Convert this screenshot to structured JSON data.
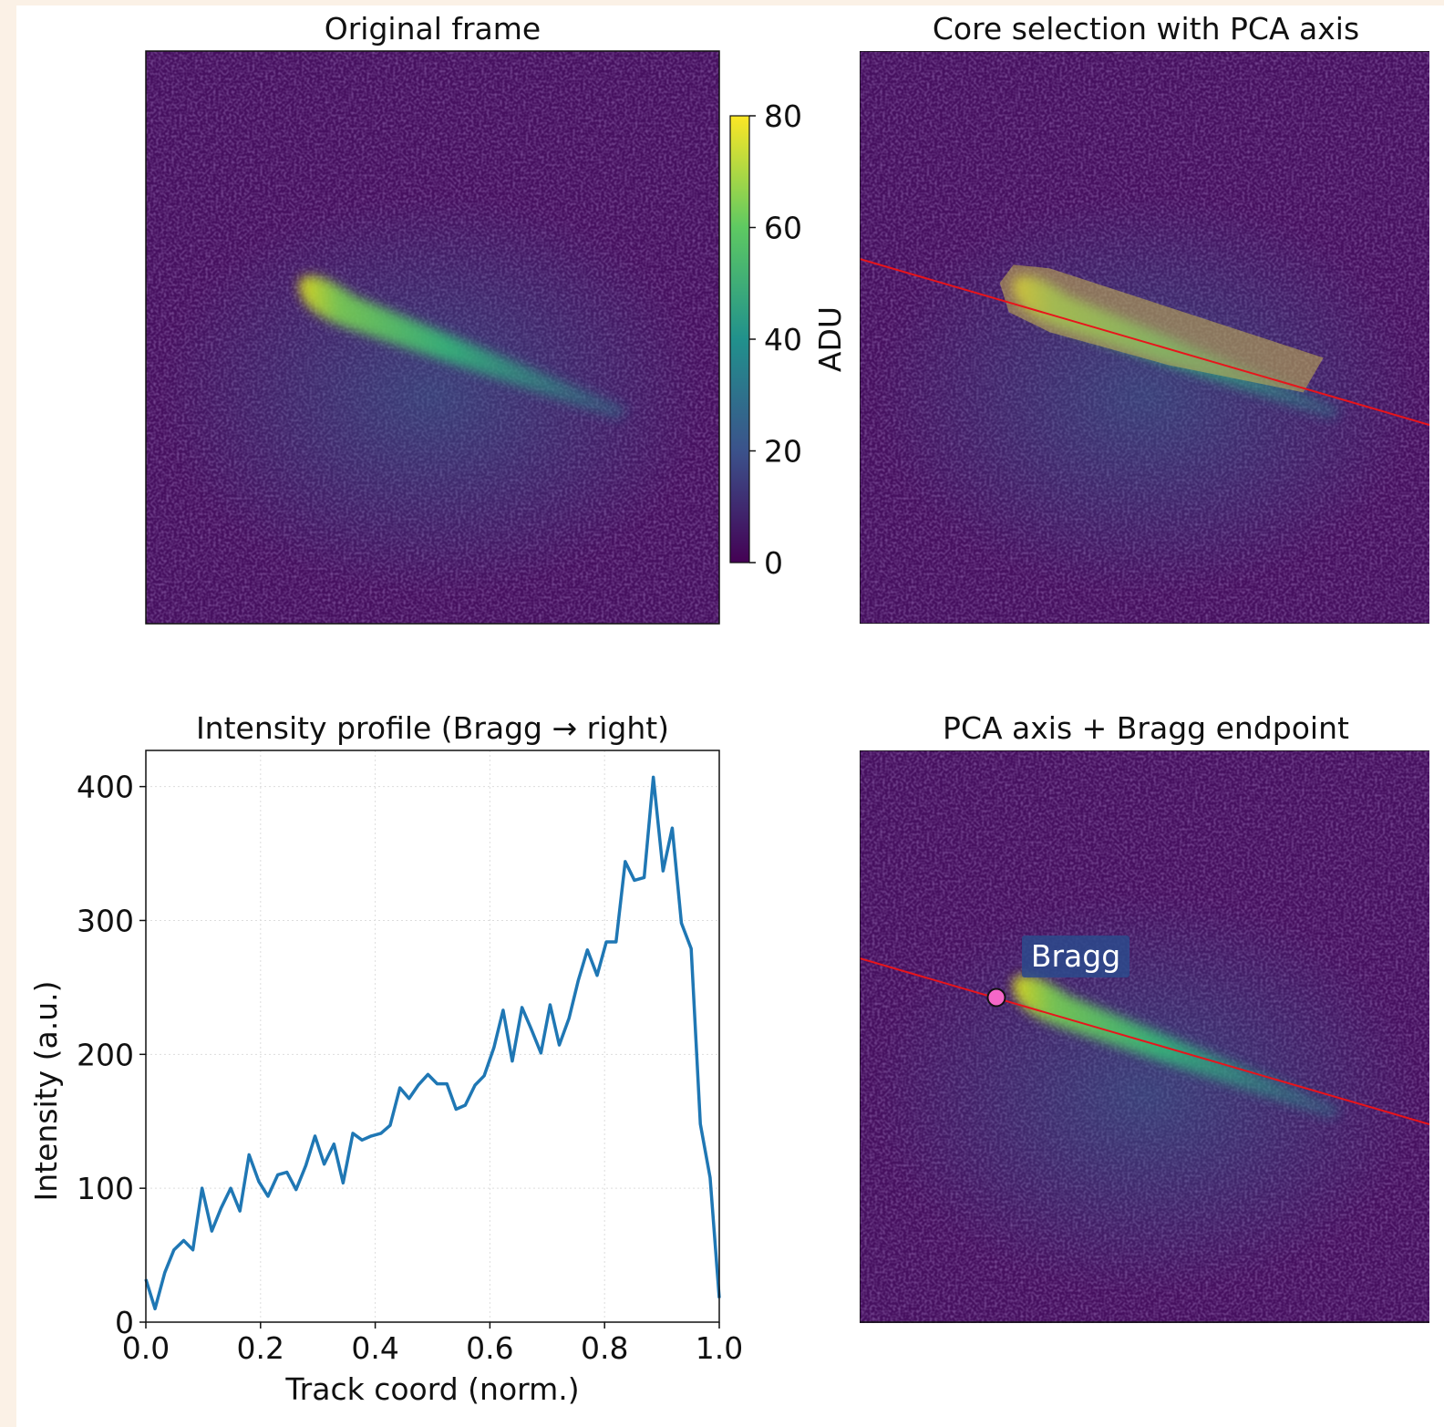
{
  "chart_data": [
    {
      "type": "image",
      "title": "Original frame",
      "colorbar": {
        "label": "ADU",
        "lim": [
          0,
          80
        ],
        "ticks": [
          0,
          20,
          40,
          60,
          80
        ]
      }
    },
    {
      "type": "image",
      "title": "Core selection with PCA axis"
    },
    {
      "type": "line",
      "title": "Intensity profile (Bragg → right)",
      "xlabel": "Track coord (norm.)",
      "ylabel": "Intensity (a.u.)",
      "x": [
        0,
        0.016,
        0.033,
        0.049,
        0.066,
        0.082,
        0.098,
        0.115,
        0.131,
        0.148,
        0.164,
        0.18,
        0.197,
        0.213,
        0.23,
        0.246,
        0.262,
        0.279,
        0.295,
        0.311,
        0.328,
        0.344,
        0.361,
        0.377,
        0.393,
        0.41,
        0.426,
        0.443,
        0.459,
        0.475,
        0.492,
        0.508,
        0.525,
        0.541,
        0.557,
        0.574,
        0.59,
        0.607,
        0.623,
        0.639,
        0.656,
        0.672,
        0.689,
        0.705,
        0.721,
        0.738,
        0.754,
        0.77,
        0.787,
        0.803,
        0.82,
        0.836,
        0.852,
        0.869,
        0.885,
        0.902,
        0.918,
        0.934,
        0.951,
        0.967,
        0.984,
        1
      ],
      "values": [
        32,
        10,
        37,
        54,
        61,
        54,
        100,
        68,
        85,
        100,
        83,
        125,
        105,
        94,
        110,
        112,
        99,
        117,
        139,
        118,
        133,
        104,
        141,
        136,
        139,
        141,
        147,
        175,
        167,
        177,
        185,
        178,
        178,
        159,
        162,
        177,
        184,
        205,
        233,
        195,
        235,
        219,
        201,
        237,
        207,
        227,
        255,
        278,
        259,
        284,
        284,
        344,
        330,
        332,
        407,
        337,
        369,
        298,
        279,
        148,
        108,
        18
      ],
      "color": "#1f77b4",
      "xlim": [
        0,
        1
      ],
      "ylim": [
        0,
        427
      ],
      "xticks": [
        {
          "value": 0,
          "label": "0.0"
        },
        0.2,
        0.4,
        0.6,
        0.8,
        {
          "value": 1,
          "label": "1.0"
        }
      ],
      "yticks": [
        0,
        100,
        200,
        300,
        400
      ],
      "grid": true
    },
    {
      "type": "image",
      "title": "PCA axis + Bragg endpoint",
      "annotation": "Bragg"
    }
  ]
}
